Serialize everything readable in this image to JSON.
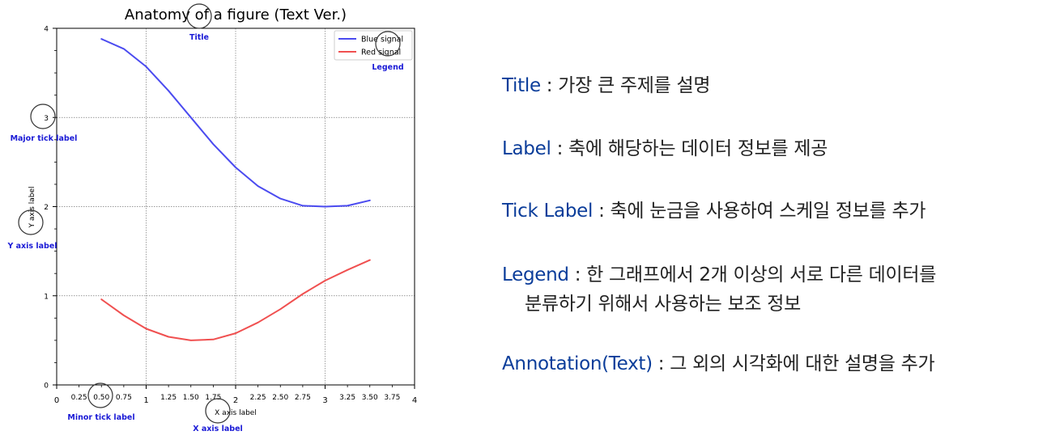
{
  "chart_data": {
    "type": "line",
    "title": "Anatomy of a figure (Text Ver.)",
    "xlabel": "X axis label",
    "ylabel": "Y axis label",
    "xlim": [
      0,
      4
    ],
    "ylim": [
      0,
      4
    ],
    "grid": true,
    "legend_position": "top-right",
    "major_xticks": [
      0,
      1,
      2,
      3,
      4
    ],
    "major_yticks": [
      0,
      1,
      2,
      3,
      4
    ],
    "minor_xticks": [
      "0.25",
      "0.50",
      "0.75",
      "1.25",
      "1.50",
      "1.75",
      "2.25",
      "2.50",
      "2.75",
      "3.25",
      "3.50",
      "3.75"
    ],
    "series": [
      {
        "name": "Blue signal",
        "color": "#4b4bf0",
        "x": [
          0.5,
          0.75,
          1.0,
          1.25,
          1.5,
          1.75,
          2.0,
          2.25,
          2.5,
          2.75,
          3.0,
          3.25,
          3.5
        ],
        "y": [
          3.88,
          3.77,
          3.57,
          3.3,
          3.0,
          2.7,
          2.44,
          2.23,
          2.09,
          2.01,
          2.0,
          2.01,
          2.07
        ]
      },
      {
        "name": "Red signal",
        "color": "#f05050",
        "x": [
          0.5,
          0.75,
          1.0,
          1.25,
          1.5,
          1.75,
          2.0,
          2.25,
          2.5,
          2.75,
          3.0,
          3.25,
          3.5
        ],
        "y": [
          0.96,
          0.78,
          0.63,
          0.54,
          0.5,
          0.51,
          0.58,
          0.7,
          0.85,
          1.02,
          1.17,
          1.29,
          1.4
        ]
      }
    ],
    "annotations": [
      {
        "text": "Title",
        "color": "#1a1ad6"
      },
      {
        "text": "Legend",
        "color": "#1a1ad6"
      },
      {
        "text": "Major tick label",
        "color": "#1a1ad6"
      },
      {
        "text": "Y axis label",
        "color": "#1a1ad6"
      },
      {
        "text": "Minor tick label",
        "color": "#1a1ad6"
      },
      {
        "text": "X axis label",
        "color": "#1a1ad6"
      }
    ]
  },
  "notes": [
    {
      "term": "Title",
      "sep": " : ",
      "desc": "가장 큰 주제를 설명"
    },
    {
      "term": "Label",
      "sep": " : ",
      "desc": "축에 해당하는 데이터 정보를 제공"
    },
    {
      "term": "Tick Label",
      "sep": " : ",
      "desc": "축에 눈금을 사용하여 스케일 정보를 추가"
    },
    {
      "term": "Legend",
      "sep": " : ",
      "desc": "한 그래프에서 2개 이상의 서로 다른 데이터를",
      "desc2": "분류하기 위해서 사용하는 보조 정보"
    },
    {
      "term": "Annotation(Text)",
      "sep": " : ",
      "desc": "그 외의 시각화에 대한 설명을 추가"
    }
  ],
  "colors": {
    "term": "#0b3d9a",
    "annotation": "#1a1ad6",
    "grid": "#777777"
  }
}
